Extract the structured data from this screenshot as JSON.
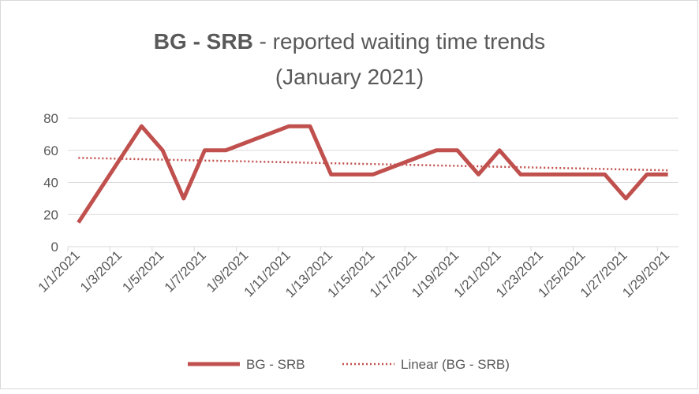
{
  "chart_data": {
    "type": "line",
    "title_bold": "BG - SRB",
    "title_rest": " - reported waiting time trends",
    "title_line2": "(January 2021)",
    "x": [
      "1/1/2021",
      "1/4/2021",
      "1/5/2021",
      "1/6/2021",
      "1/7/2021",
      "1/8/2021",
      "1/11/2021",
      "1/12/2021",
      "1/13/2021",
      "1/15/2021",
      "1/18/2021",
      "1/19/2021",
      "1/20/2021",
      "1/21/2021",
      "1/22/2021",
      "1/26/2021",
      "1/27/2021",
      "1/28/2021",
      "1/29/2021"
    ],
    "series": [
      {
        "name": "BG - SRB",
        "color": "#c0504d",
        "values": [
          15,
          75,
          60,
          30,
          60,
          60,
          75,
          75,
          45,
          45,
          60,
          60,
          45,
          60,
          45,
          45,
          30,
          45,
          45
        ]
      }
    ],
    "trendline": {
      "name": "Linear (BG - SRB)",
      "color": "#c0504d"
    },
    "xlim": [
      "1/1/2021",
      "1/29/2021"
    ],
    "xticks": [
      "1/1/2021",
      "1/3/2021",
      "1/5/2021",
      "1/7/2021",
      "1/9/2021",
      "1/11/2021",
      "1/13/2021",
      "1/15/2021",
      "1/17/2021",
      "1/19/2021",
      "1/21/2021",
      "1/23/2021",
      "1/25/2021",
      "1/27/2021",
      "1/29/2021"
    ],
    "ylim": [
      0,
      80
    ],
    "yticks": [
      0,
      20,
      40,
      60,
      80
    ],
    "grid": true,
    "legend": "bottom"
  }
}
